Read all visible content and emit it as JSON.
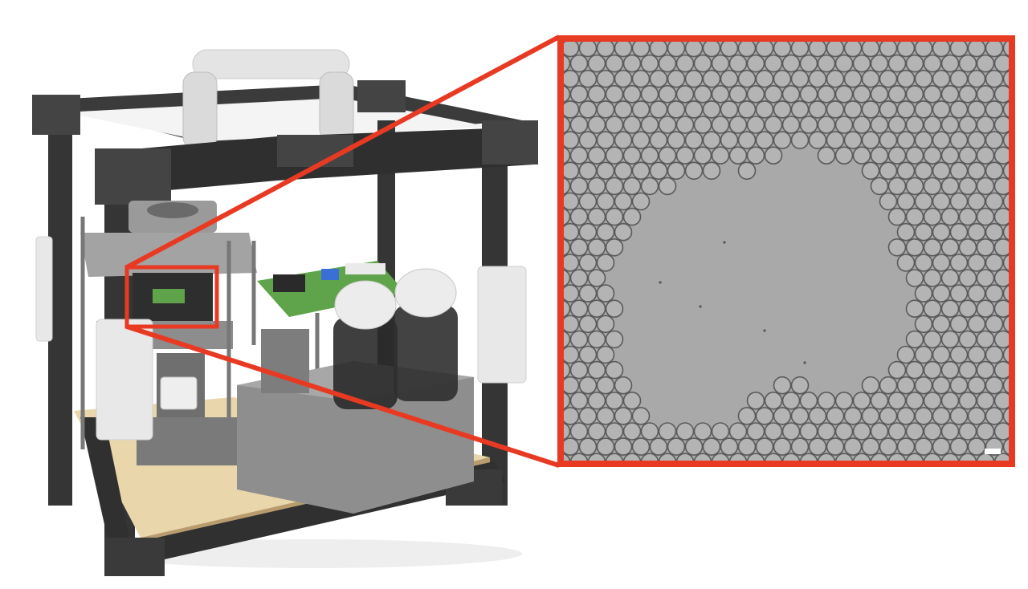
{
  "figure": {
    "left_panel": "device-rendering",
    "right_panel": "micrograph-droplet-monolayer",
    "colors": {
      "frame": "#3b3b3b",
      "frame_dark": "#2c2c2c",
      "base_wood": "#e9d6aa",
      "parts_grey": "#8d8d8d",
      "parts_white": "#e8e8e8",
      "pcb_green": "#5fa34a",
      "highlight_red": "#e83a23",
      "micrograph_bg": "#a9a9a9",
      "droplet_fill": "#b4b4b4",
      "droplet_edge": "#5a5a5a"
    },
    "scale_bar_visible": true
  }
}
